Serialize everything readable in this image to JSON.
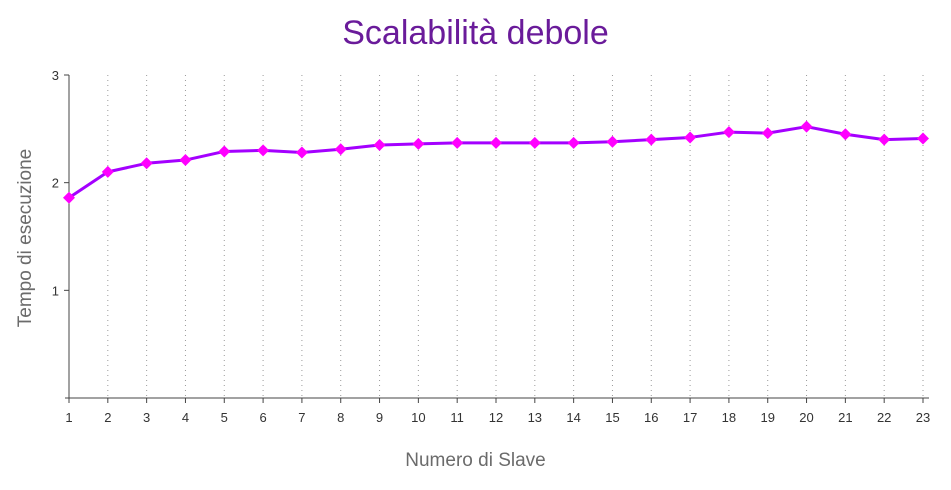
{
  "chart_data": {
    "type": "line",
    "title": "Scalabilità debole",
    "xlabel": "Numero di Slave",
    "ylabel": "Tempo di esecuzione",
    "x": [
      1,
      2,
      3,
      4,
      5,
      6,
      7,
      8,
      9,
      10,
      11,
      12,
      13,
      14,
      15,
      16,
      17,
      18,
      19,
      20,
      21,
      22,
      23
    ],
    "series": [
      {
        "values": [
          1.86,
          2.1,
          2.18,
          2.21,
          2.29,
          2.3,
          2.28,
          2.31,
          2.35,
          2.36,
          2.37,
          2.37,
          2.37,
          2.37,
          2.38,
          2.4,
          2.42,
          2.47,
          2.46,
          2.52,
          2.45,
          2.4,
          2.41
        ],
        "color": "#d400f0",
        "marker": "diamond"
      }
    ],
    "xlim": [
      1,
      23
    ],
    "ylim": [
      0,
      3
    ],
    "yticks": [
      1,
      2,
      3
    ],
    "grid": "vertical dotted",
    "colors": {
      "title": "#6a1b9a",
      "line": "#a400ff",
      "marker": "#ff00ff",
      "axis_text": "#6b6b6b"
    }
  }
}
